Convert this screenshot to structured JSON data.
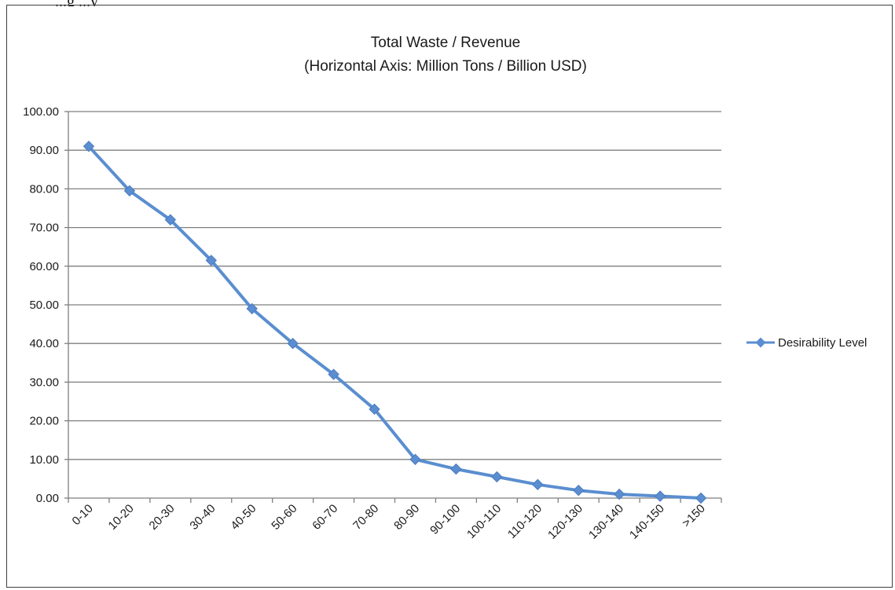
{
  "page": {
    "cut_off_text": "...g                              ...y"
  },
  "chart_data": {
    "type": "line",
    "title_lines": [
      "Total Waste / Revenue",
      "(Horizontal Axis: Million Tons / Billion USD)"
    ],
    "xlabel": "",
    "ylabel": "",
    "categories": [
      "0-10",
      "10-20",
      "20-30",
      "30-40",
      "40-50",
      "50-60",
      "60-70",
      "70-80",
      "80-90",
      "90-100",
      "100-110",
      "110-120",
      "120-130",
      "130-140",
      "140-150",
      ">150"
    ],
    "series": [
      {
        "name": "Desirability Level",
        "values": [
          91.0,
          79.5,
          72.0,
          61.5,
          49.0,
          40.0,
          32.0,
          23.0,
          10.0,
          7.5,
          5.5,
          3.5,
          2.0,
          1.0,
          0.5,
          0.0
        ]
      }
    ],
    "ylim": [
      0,
      100
    ],
    "yticks": [
      0,
      10,
      20,
      30,
      40,
      50,
      60,
      70,
      80,
      90,
      100
    ],
    "ytick_labels": [
      "0.00",
      "10.00",
      "20.00",
      "30.00",
      "40.00",
      "50.00",
      "60.00",
      "70.00",
      "80.00",
      "90.00",
      "100.00"
    ],
    "grid": true,
    "legend_position": "right",
    "colors": {
      "series": "#5a8ed0",
      "grid": "#7f7f7f",
      "axis": "#7f7f7f",
      "frame": "#404040"
    }
  }
}
